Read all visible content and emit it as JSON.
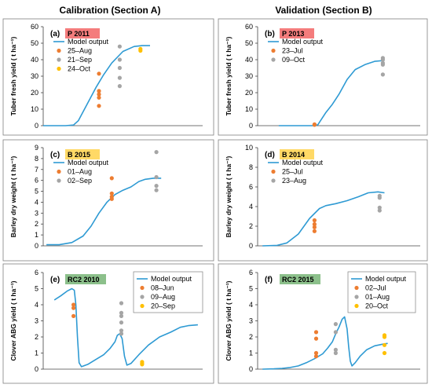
{
  "titles": {
    "left": "Calibration (Section A)",
    "right": "Validation (Section B)"
  },
  "legend_model_label": "Model output",
  "colors": {
    "model": "#2e9ad3",
    "orange": "#ed7d31",
    "gray": "#a5a5a5",
    "gold": "#ffc000",
    "tag_red": "#f47c7c",
    "tag_yellow": "#ffd966",
    "tag_green": "#8cc08b"
  },
  "chart_data": [
    {
      "id": "a",
      "label": "(a)",
      "tag": "P 2011",
      "tag_color": "#f47c7c",
      "type": "line+scatter",
      "ylabel": "Tuber fresh yield ( t ha⁻¹)",
      "ylim": [
        0,
        60
      ],
      "yticks": [
        0,
        10,
        20,
        30,
        40,
        50,
        60
      ],
      "xlim": [
        0,
        100
      ],
      "model_output": [
        [
          0,
          0
        ],
        [
          14,
          0
        ],
        [
          19,
          0.4
        ],
        [
          22,
          3
        ],
        [
          27,
          12
        ],
        [
          33,
          23
        ],
        [
          38,
          31
        ],
        [
          43,
          38
        ],
        [
          50,
          45
        ],
        [
          57,
          48
        ],
        [
          62,
          48.5
        ],
        [
          67,
          48.5
        ]
      ],
      "series": [
        {
          "name": "25–Aug",
          "color": "#ed7d31",
          "points": [
            [
              35,
              31.5
            ],
            [
              35,
              21
            ],
            [
              35,
              19
            ],
            [
              35,
              17
            ],
            [
              35,
              12
            ]
          ]
        },
        {
          "name": "21–Sep",
          "color": "#a5a5a5",
          "points": [
            [
              48,
              48
            ],
            [
              48,
              40
            ],
            [
              48,
              35
            ],
            [
              48,
              29
            ],
            [
              48,
              24
            ]
          ]
        },
        {
          "name": "24–Oct",
          "color": "#ffc000",
          "points": [
            [
              61,
              46.5
            ],
            [
              61,
              45.5
            ]
          ]
        }
      ]
    },
    {
      "id": "b",
      "label": "(b)",
      "tag": "P 2013",
      "tag_color": "#f47c7c",
      "type": "line+scatter",
      "ylabel": "Tuber fresh yield ( t ha⁻¹)",
      "ylim": [
        0,
        60
      ],
      "yticks": [
        0,
        10,
        20,
        30,
        40,
        50,
        60
      ],
      "xlim": [
        0,
        100
      ],
      "model_output": [
        [
          13,
          0
        ],
        [
          34,
          0
        ],
        [
          37,
          0.5
        ],
        [
          42,
          8
        ],
        [
          46,
          13
        ],
        [
          50,
          19
        ],
        [
          55,
          28
        ],
        [
          60,
          34
        ],
        [
          66,
          37
        ],
        [
          72,
          39
        ],
        [
          78,
          39.5
        ]
      ],
      "series": [
        {
          "name": "23–Jul",
          "color": "#ed7d31",
          "points": [
            [
              35,
              0.8
            ],
            [
              35,
              0.5
            ]
          ]
        },
        {
          "name": "09–Oct",
          "color": "#a5a5a5",
          "points": [
            [
              77,
              41
            ],
            [
              77,
              40
            ],
            [
              77,
              38
            ],
            [
              77,
              37
            ],
            [
              77,
              31
            ]
          ]
        }
      ]
    },
    {
      "id": "c",
      "label": "(c)",
      "tag": "B 2015",
      "tag_color": "#ffd966",
      "type": "line+scatter",
      "ylabel": "Barley dry weight ( t ha⁻¹)",
      "ylim": [
        0,
        9
      ],
      "yticks": [
        0,
        1,
        2,
        3,
        4,
        5,
        6,
        7,
        8,
        9
      ],
      "xlim": [
        0,
        100
      ],
      "model_output": [
        [
          2,
          0.1
        ],
        [
          10,
          0.1
        ],
        [
          18,
          0.3
        ],
        [
          25,
          0.9
        ],
        [
          30,
          1.8
        ],
        [
          35,
          3
        ],
        [
          40,
          4
        ],
        [
          45,
          4.7
        ],
        [
          50,
          5.1
        ],
        [
          55,
          5.4
        ],
        [
          60,
          5.9
        ],
        [
          64,
          6.1
        ],
        [
          69,
          6.2
        ],
        [
          74,
          6.2
        ]
      ],
      "series": [
        {
          "name": "01–Aug",
          "color": "#ed7d31",
          "points": [
            [
              43,
              6.2
            ],
            [
              43,
              4.8
            ],
            [
              43,
              4.5
            ],
            [
              43,
              4.3
            ]
          ]
        },
        {
          "name": "02–Sep",
          "color": "#a5a5a5",
          "points": [
            [
              71,
              8.6
            ],
            [
              71,
              6.3
            ],
            [
              71,
              5.5
            ],
            [
              71,
              5.1
            ]
          ]
        }
      ]
    },
    {
      "id": "d",
      "label": "(d)",
      "tag": "B 2014",
      "tag_color": "#ffd966",
      "type": "line+scatter",
      "ylabel": "Barley dry weight ( t ha⁻¹)",
      "ylim": [
        0,
        10
      ],
      "yticks": [
        0,
        2,
        4,
        6,
        8,
        10
      ],
      "xlim": [
        0,
        100
      ],
      "model_output": [
        [
          3,
          0
        ],
        [
          12,
          0.05
        ],
        [
          18,
          0.3
        ],
        [
          25,
          1.2
        ],
        [
          32,
          2.8
        ],
        [
          38,
          3.8
        ],
        [
          42,
          4.1
        ],
        [
          48,
          4.3
        ],
        [
          55,
          4.6
        ],
        [
          62,
          5
        ],
        [
          68,
          5.4
        ],
        [
          74,
          5.5
        ],
        [
          78,
          5.4
        ]
      ],
      "series": [
        {
          "name": "25–Jul",
          "color": "#ed7d31",
          "points": [
            [
              35,
              2.6
            ],
            [
              35,
              2.2
            ],
            [
              35,
              1.9
            ],
            [
              35,
              1.5
            ]
          ]
        },
        {
          "name": "23–Aug",
          "color": "#a5a5a5",
          "points": [
            [
              75,
              5.1
            ],
            [
              75,
              4.9
            ],
            [
              75,
              3.9
            ],
            [
              75,
              3.6
            ]
          ]
        }
      ]
    },
    {
      "id": "e",
      "label": "(e)",
      "tag": "RC2 2010",
      "tag_color": "#8cc08b",
      "type": "line+scatter",
      "ylabel": "Clover ABG yield ( t ha⁻¹)",
      "ylim": [
        0,
        6
      ],
      "yticks": [
        0,
        1,
        2,
        3,
        4,
        5,
        6
      ],
      "xlim": [
        0,
        100
      ],
      "model_output": [
        [
          7,
          4.3
        ],
        [
          11,
          4.55
        ],
        [
          15,
          4.85
        ],
        [
          18,
          5.0
        ],
        [
          19.5,
          4.9
        ],
        [
          20.5,
          4.0
        ],
        [
          21.5,
          2.0
        ],
        [
          22.5,
          0.4
        ],
        [
          24,
          0.15
        ],
        [
          28,
          0.3
        ],
        [
          33,
          0.6
        ],
        [
          38,
          0.9
        ],
        [
          42,
          1.3
        ],
        [
          45,
          1.7
        ],
        [
          46.5,
          2.1
        ],
        [
          48,
          2.2
        ],
        [
          49.5,
          1.9
        ],
        [
          51,
          0.8
        ],
        [
          52.5,
          0.25
        ],
        [
          55,
          0.35
        ],
        [
          60,
          0.9
        ],
        [
          66,
          1.5
        ],
        [
          73,
          2.0
        ],
        [
          80,
          2.3
        ],
        [
          86,
          2.6
        ],
        [
          91,
          2.7
        ],
        [
          97,
          2.75
        ]
      ],
      "series": [
        {
          "name": "08–Jun",
          "color": "#ed7d31",
          "points": [
            [
              19,
              4.0
            ],
            [
              19,
              3.8
            ],
            [
              19,
              3.3
            ]
          ]
        },
        {
          "name": "09–Aug",
          "color": "#a5a5a5",
          "points": [
            [
              49,
              4.1
            ],
            [
              49,
              3.5
            ],
            [
              49,
              3.3
            ],
            [
              49,
              2.9
            ],
            [
              49,
              2.4
            ],
            [
              49,
              2.2
            ]
          ]
        },
        {
          "name": "20–Sep",
          "color": "#ffc000",
          "points": [
            [
              62,
              0.45
            ],
            [
              62,
              0.35
            ],
            [
              62,
              0.3
            ]
          ]
        }
      ]
    },
    {
      "id": "f",
      "label": "(f)",
      "tag": "RC2 2015",
      "tag_color": "#8cc08b",
      "type": "line+scatter",
      "ylabel": "Clover ABG yield ( t ha⁻¹)",
      "ylim": [
        0,
        6
      ],
      "yticks": [
        0,
        1,
        2,
        3,
        4,
        5,
        6
      ],
      "xlim": [
        0,
        100
      ],
      "model_output": [
        [
          3,
          0
        ],
        [
          10,
          0.02
        ],
        [
          15,
          0.05
        ],
        [
          20,
          0.1
        ],
        [
          25,
          0.2
        ],
        [
          30,
          0.4
        ],
        [
          35,
          0.65
        ],
        [
          40,
          0.95
        ],
        [
          43,
          1.3
        ],
        [
          46,
          1.7
        ],
        [
          48,
          2.2
        ],
        [
          50,
          2.6
        ],
        [
          52,
          3.1
        ],
        [
          53.5,
          3.25
        ],
        [
          55,
          2.5
        ],
        [
          56,
          1.4
        ],
        [
          57,
          0.5
        ],
        [
          58,
          0.2
        ],
        [
          60,
          0.4
        ],
        [
          63,
          0.8
        ],
        [
          67,
          1.2
        ],
        [
          72,
          1.45
        ],
        [
          77,
          1.55
        ],
        [
          80,
          1.6
        ]
      ],
      "series": [
        {
          "name": "02–Jul",
          "color": "#ed7d31",
          "points": [
            [
              36,
              2.3
            ],
            [
              36,
              1.9
            ],
            [
              36,
              1.0
            ],
            [
              36,
              0.8
            ]
          ]
        },
        {
          "name": "01–Aug",
          "color": "#a5a5a5",
          "points": [
            [
              48,
              2.8
            ],
            [
              48,
              2.3
            ],
            [
              48,
              1.2
            ],
            [
              48,
              1.0
            ]
          ]
        },
        {
          "name": "20–Oct",
          "color": "#ffc000",
          "points": [
            [
              78,
              2.1
            ],
            [
              78,
              2.0
            ],
            [
              78,
              1.5
            ],
            [
              78,
              1.0
            ]
          ]
        }
      ]
    }
  ]
}
